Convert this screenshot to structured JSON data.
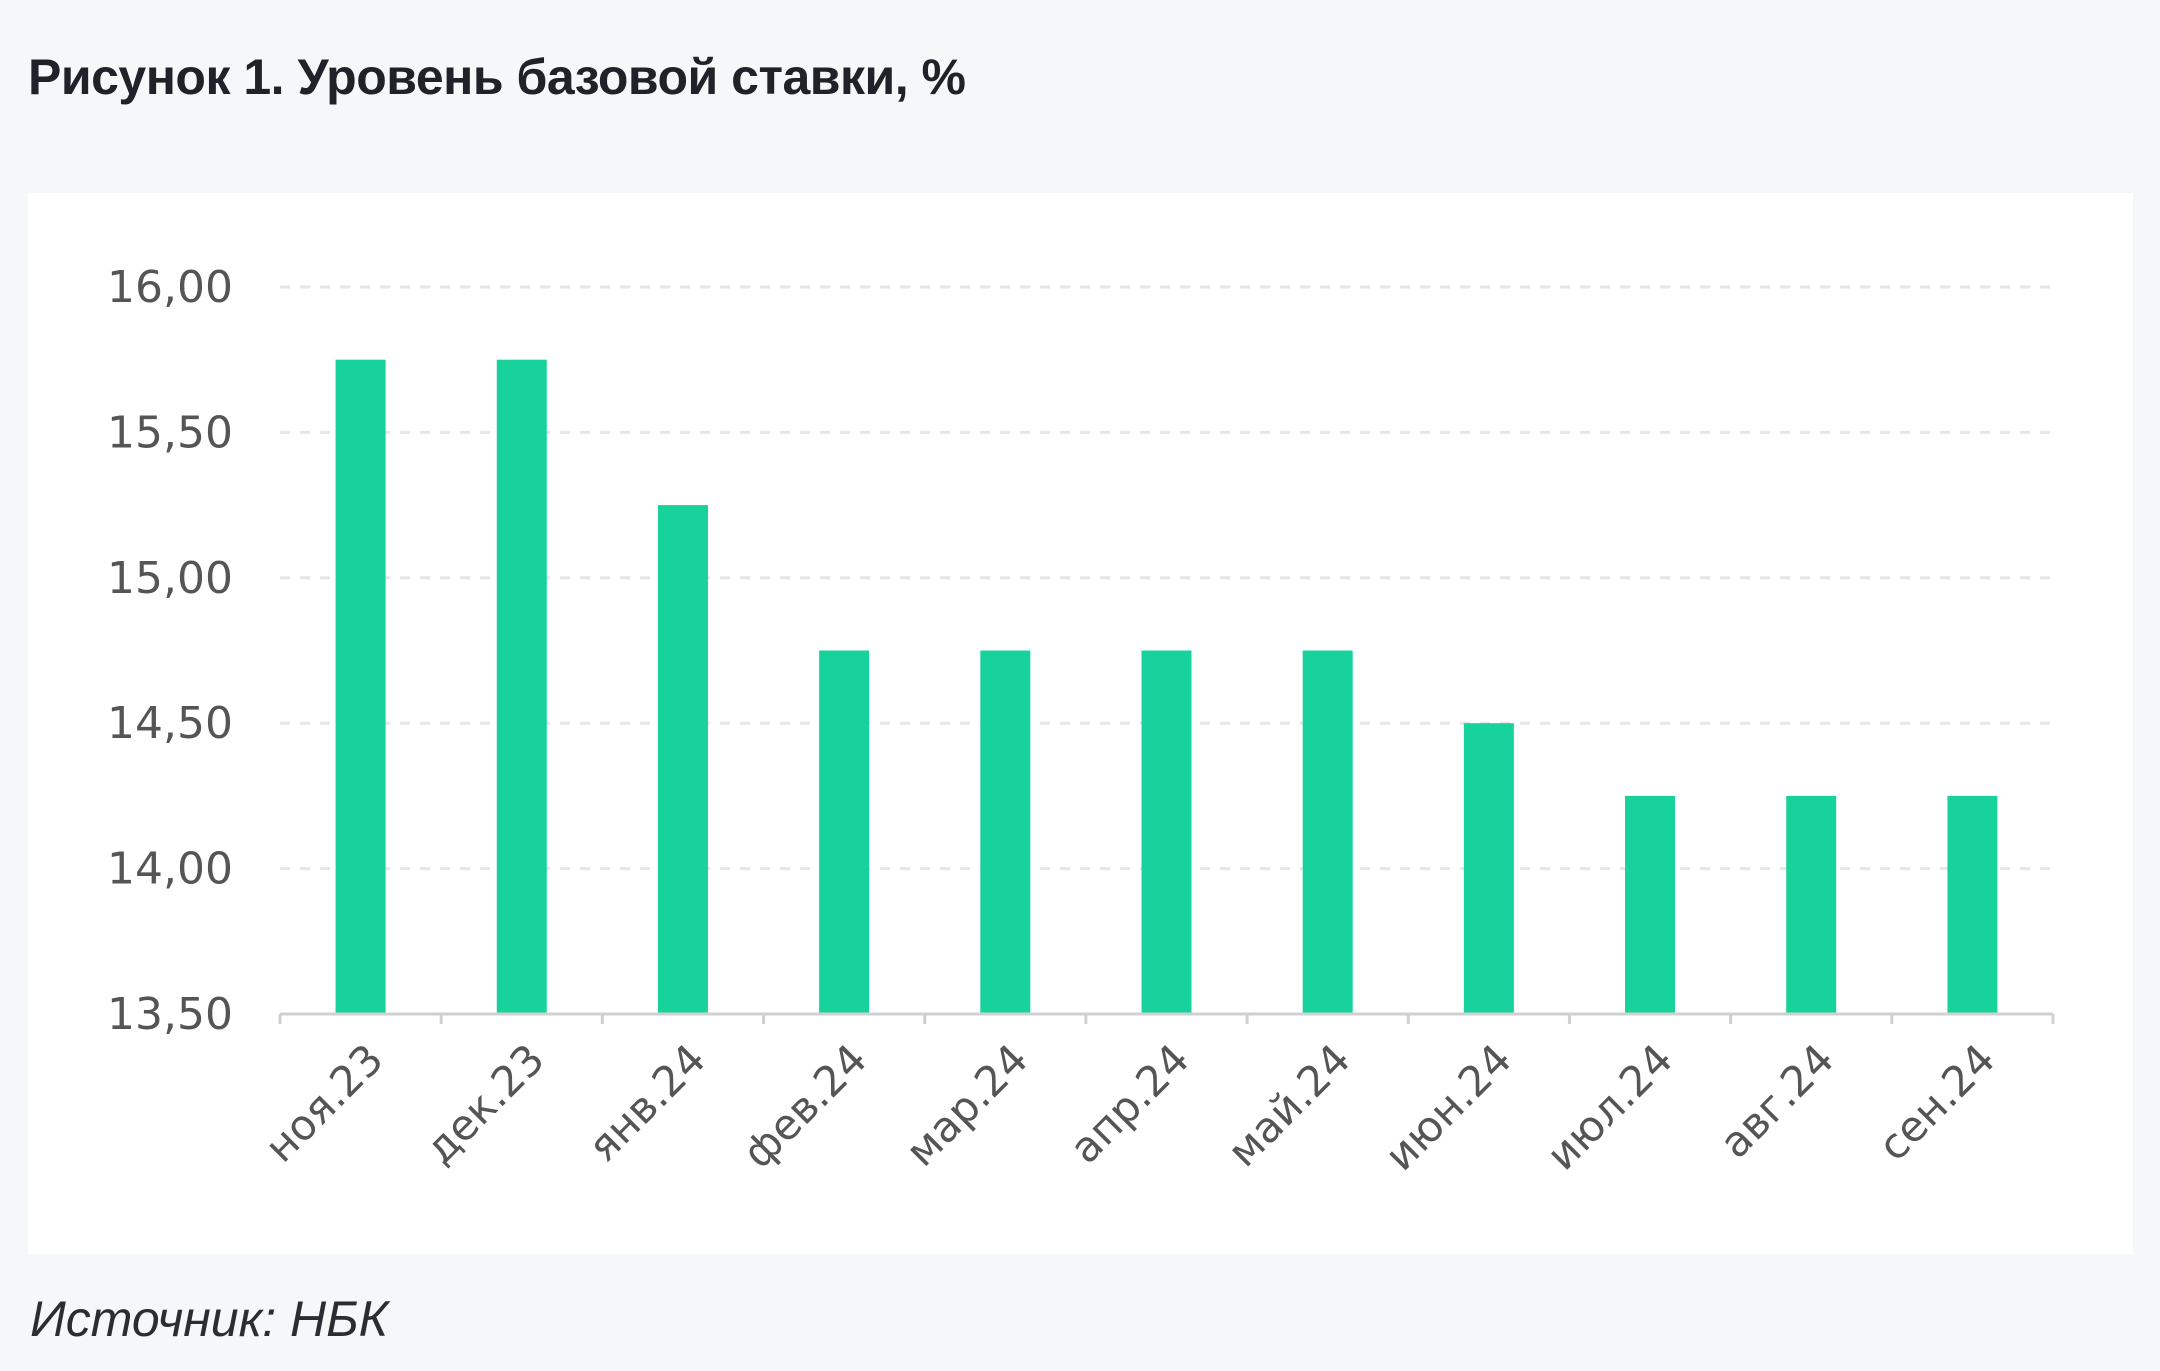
{
  "title": "Рисунок 1. Уровень базовой ставки, %",
  "source": "Источник: НБК",
  "chart_data": {
    "type": "bar",
    "title": "Рисунок 1. Уровень базовой ставки, %",
    "xlabel": "",
    "ylabel": "",
    "categories": [
      "ноя.23",
      "дек.23",
      "янв.24",
      "фев.24",
      "мар.24",
      "апр.24",
      "май.24",
      "июн.24",
      "июл.24",
      "авг.24",
      "сен.24"
    ],
    "values": [
      15.75,
      15.75,
      15.25,
      14.75,
      14.75,
      14.75,
      14.75,
      14.5,
      14.25,
      14.25,
      14.25
    ],
    "ylim": [
      13.5,
      16.0
    ],
    "yticks": [
      "13,50",
      "14,00",
      "14,50",
      "15,00",
      "15,50",
      "16,00"
    ],
    "grid": true,
    "legend": "none",
    "bar_color": "#17d39b"
  }
}
